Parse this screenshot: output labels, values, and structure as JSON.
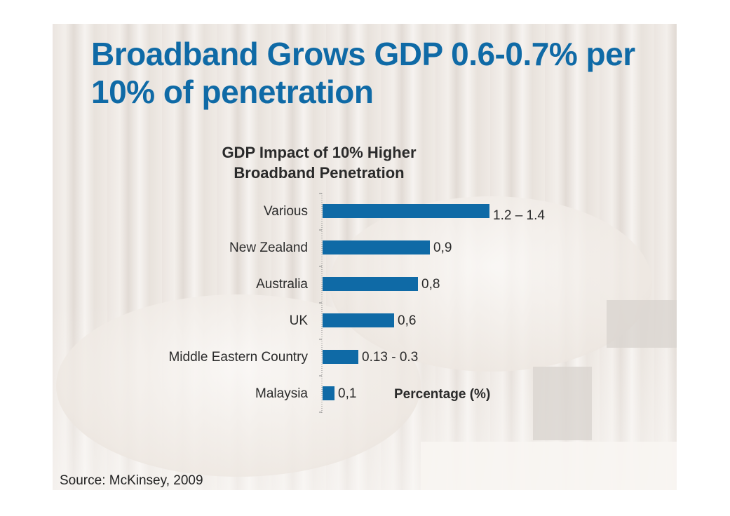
{
  "slide": {
    "title_line1": "Broadband Grows GDP 0.6-0.7% per",
    "title_line2": "10% of penetration",
    "source": "Source: McKinsey, 2009",
    "colors": {
      "title": "#0f6aa6",
      "bar": "#0f6aa6",
      "text": "#2a2a2a"
    }
  },
  "chart_data": {
    "type": "bar",
    "orientation": "horizontal",
    "title_line1": "GDP Impact of 10% Higher",
    "title_line2": "Broadband Penetration",
    "xlabel": "Percentage (%)",
    "ylabel": "",
    "categories": [
      "Various",
      "New Zealand",
      "Australia",
      "UK",
      "Middle Eastern Country",
      "Malaysia"
    ],
    "values": [
      1.4,
      0.9,
      0.8,
      0.6,
      0.3,
      0.1
    ],
    "data_labels": [
      "1.2 – 1.4",
      "0,9",
      "0,8",
      "0,6",
      "0.13 - 0.3",
      "0,1"
    ],
    "xlim": [
      0,
      1.4
    ],
    "grid": false,
    "legend": "none"
  }
}
